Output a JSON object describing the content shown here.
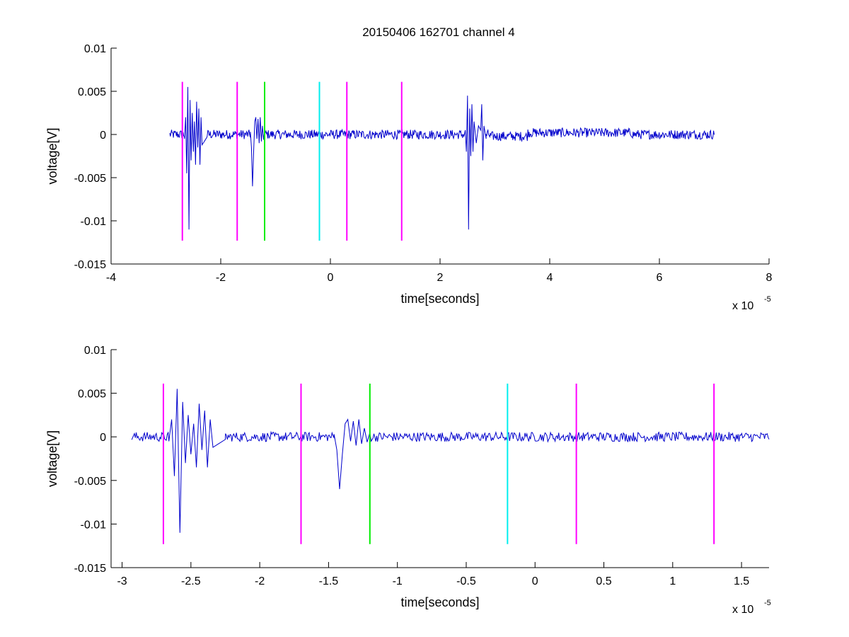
{
  "figure": {
    "title": "20150406 162701 channel 4"
  },
  "colors": {
    "signal": "#0000cc",
    "magenta": "#ff00ff",
    "green": "#00ee00",
    "cyan": "#00eeee"
  },
  "chart_data": [
    {
      "type": "line",
      "xlabel": "time[seconds]",
      "ylabel": "voltage[V]",
      "x_exponent_base": "x 10",
      "x_exponent_power": "-5",
      "xlim": [
        -4,
        8
      ],
      "ylim": [
        -0.015,
        0.01
      ],
      "xticks": [
        -4,
        -2,
        0,
        2,
        4,
        6,
        8
      ],
      "xtick_labels": [
        "-4",
        "-2",
        "0",
        "2",
        "4",
        "6",
        "8"
      ],
      "yticks": [
        0.01,
        0.005,
        0,
        -0.005,
        -0.01,
        -0.015
      ],
      "ytick_labels": [
        "0.01",
        "0.005",
        "0",
        "-0.005",
        "-0.01",
        "-0.015"
      ],
      "grid": false,
      "signal_range": [
        -2.93,
        7.0
      ],
      "bursts": [
        {
          "x": [
            -2.66,
            -2.64,
            -2.62,
            -2.6,
            -2.58,
            -2.56,
            -2.54,
            -2.52,
            -2.5,
            -2.48,
            -2.46,
            -2.44,
            -2.42,
            -2.4,
            -2.38,
            -2.36,
            -2.34,
            -2.3,
            -2.25
          ],
          "y": [
            -0.0005,
            0.002,
            -0.0045,
            0.0055,
            -0.011,
            0.004,
            -0.003,
            0.0025,
            -0.002,
            0.0015,
            -0.0035,
            0.0038,
            -0.0015,
            0.003,
            -0.0035,
            0.002,
            -0.0012,
            -0.0008,
            -0.0003
          ]
        },
        {
          "x": [
            -1.46,
            -1.44,
            -1.42,
            -1.4,
            -1.38,
            -1.36,
            -1.34,
            -1.32,
            -1.3,
            -1.28,
            -1.26,
            -1.24,
            -1.22,
            -1.2
          ],
          "y": [
            0.0003,
            -0.0015,
            -0.006,
            -0.002,
            0.0015,
            0.002,
            -0.0005,
            0.0018,
            -0.001,
            0.002,
            -0.0008,
            0.001,
            -0.0006,
            0.0005
          ]
        },
        {
          "x": [
            2.46,
            2.48,
            2.5,
            2.52,
            2.54,
            2.56,
            2.58,
            2.6,
            2.62,
            2.66,
            2.7,
            2.74,
            2.76,
            2.78,
            2.8,
            2.84
          ],
          "y": [
            0.0005,
            -0.002,
            0.0045,
            -0.011,
            0.003,
            -0.0025,
            0.0035,
            -0.002,
            0.0015,
            -0.001,
            0.001,
            0.0005,
            0.0035,
            -0.003,
            0.001,
            -0.0005
          ]
        }
      ],
      "markers": [
        {
          "x": -2.7,
          "color": "magenta"
        },
        {
          "x": -1.7,
          "color": "magenta"
        },
        {
          "x": -1.2,
          "color": "green"
        },
        {
          "x": -0.2,
          "color": "cyan"
        },
        {
          "x": 0.3,
          "color": "magenta"
        },
        {
          "x": 1.3,
          "color": "magenta"
        }
      ],
      "marker_ylim": [
        -0.0123,
        0.0061
      ]
    },
    {
      "type": "line",
      "xlabel": "time[seconds]",
      "ylabel": "voltage[V]",
      "x_exponent_base": "x 10",
      "x_exponent_power": "-5",
      "xlim": [
        -3.08,
        1.7
      ],
      "ylim": [
        -0.015,
        0.01
      ],
      "xticks": [
        -3,
        -2.5,
        -2,
        -1.5,
        -1,
        -0.5,
        0,
        0.5,
        1,
        1.5
      ],
      "xtick_labels": [
        "-3",
        "-2.5",
        "-2",
        "-1.5",
        "-1",
        "-0.5",
        "0",
        "0.5",
        "1",
        "1.5"
      ],
      "yticks": [
        0.01,
        0.005,
        0,
        -0.005,
        -0.01,
        -0.015
      ],
      "ytick_labels": [
        "0.01",
        "0.005",
        "0",
        "-0.005",
        "-0.01",
        "-0.015"
      ],
      "grid": false,
      "signal_range": [
        -2.93,
        1.7
      ],
      "bursts": [
        {
          "x": [
            -2.66,
            -2.64,
            -2.62,
            -2.6,
            -2.58,
            -2.56,
            -2.54,
            -2.52,
            -2.5,
            -2.48,
            -2.46,
            -2.44,
            -2.42,
            -2.4,
            -2.38,
            -2.36,
            -2.34,
            -2.3,
            -2.25
          ],
          "y": [
            -0.0005,
            0.002,
            -0.0045,
            0.0055,
            -0.011,
            0.004,
            -0.003,
            0.0025,
            -0.002,
            0.0015,
            -0.0035,
            0.0038,
            -0.0015,
            0.003,
            -0.0035,
            0.002,
            -0.0012,
            -0.0008,
            -0.0003
          ]
        },
        {
          "x": [
            -1.46,
            -1.44,
            -1.42,
            -1.4,
            -1.38,
            -1.36,
            -1.34,
            -1.32,
            -1.3,
            -1.28,
            -1.26,
            -1.24,
            -1.22,
            -1.2
          ],
          "y": [
            0.0003,
            -0.0015,
            -0.006,
            -0.002,
            0.0015,
            0.002,
            -0.0005,
            0.0018,
            -0.001,
            0.002,
            -0.0008,
            0.001,
            -0.0006,
            0.0005
          ]
        }
      ],
      "markers": [
        {
          "x": -2.7,
          "color": "magenta"
        },
        {
          "x": -1.7,
          "color": "magenta"
        },
        {
          "x": -1.2,
          "color": "green"
        },
        {
          "x": -0.2,
          "color": "cyan"
        },
        {
          "x": 0.3,
          "color": "magenta"
        },
        {
          "x": 1.3,
          "color": "magenta"
        }
      ],
      "marker_ylim": [
        -0.0123,
        0.0061
      ]
    }
  ]
}
